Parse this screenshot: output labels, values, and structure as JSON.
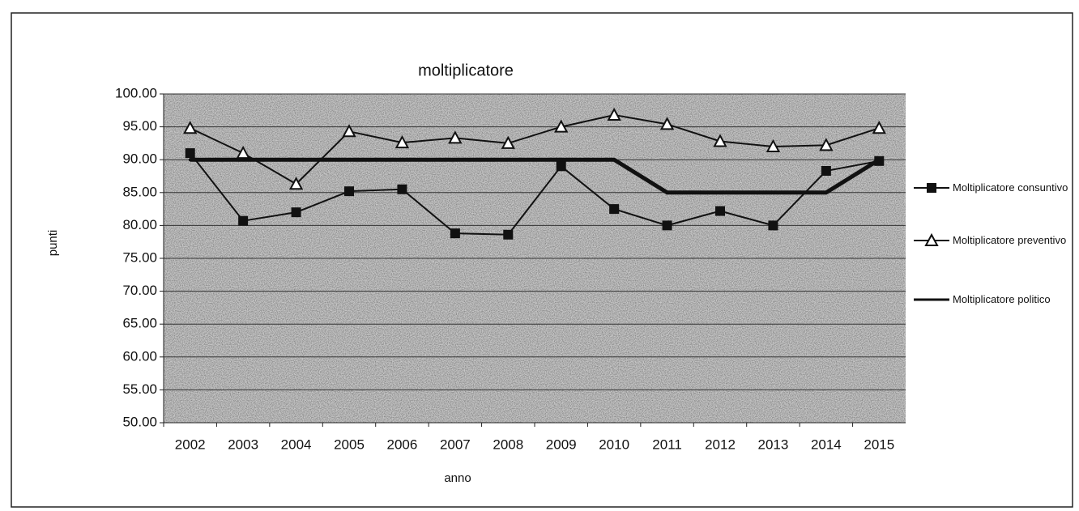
{
  "chart_data": {
    "type": "line",
    "title": "moltiplicatore",
    "x_label": "anno",
    "y_label": "punti",
    "categories": [
      "2002",
      "2003",
      "2004",
      "2005",
      "2006",
      "2007",
      "2008",
      "2009",
      "2010",
      "2011",
      "2012",
      "2013",
      "2014",
      "2015"
    ],
    "series": [
      {
        "name": "Moltiplicatore consuntivo",
        "color": "#111111",
        "marker": "square",
        "width": 2,
        "values": [
          91.0,
          80.7,
          82.0,
          85.2,
          85.5,
          78.8,
          78.6,
          89.0,
          82.5,
          80.0,
          82.2,
          80.0,
          88.3,
          89.8
        ]
      },
      {
        "name": "Moltiplicatore preventivo",
        "color": "#111111",
        "marker": "triangle",
        "width": 2,
        "values": [
          94.8,
          91.0,
          86.3,
          94.3,
          92.6,
          93.3,
          92.5,
          95.0,
          96.8,
          95.4,
          92.8,
          92.0,
          92.2,
          94.8
        ]
      },
      {
        "name": "Moltiplicatore politico",
        "color": "#111111",
        "marker": "none",
        "width": 5,
        "values": [
          90,
          90,
          90,
          90,
          90,
          90,
          90,
          90,
          90,
          85,
          85,
          85,
          85,
          90
        ]
      }
    ],
    "ylim": [
      50,
      100
    ],
    "yticks": [
      {
        "value": 50,
        "label": "50.00"
      },
      {
        "value": 55,
        "label": "55.00"
      },
      {
        "value": 60,
        "label": "60.00"
      },
      {
        "value": 65,
        "label": "65.00"
      },
      {
        "value": 70,
        "label": "70.00"
      },
      {
        "value": 75,
        "label": "75.00"
      },
      {
        "value": 80,
        "label": "80.00"
      },
      {
        "value": 85,
        "label": "85.00"
      },
      {
        "value": 90,
        "label": "90.00"
      },
      {
        "value": 95,
        "label": "95.00"
      },
      {
        "value": 100,
        "label": "100.00"
      }
    ],
    "grid": true,
    "legend": "right"
  }
}
